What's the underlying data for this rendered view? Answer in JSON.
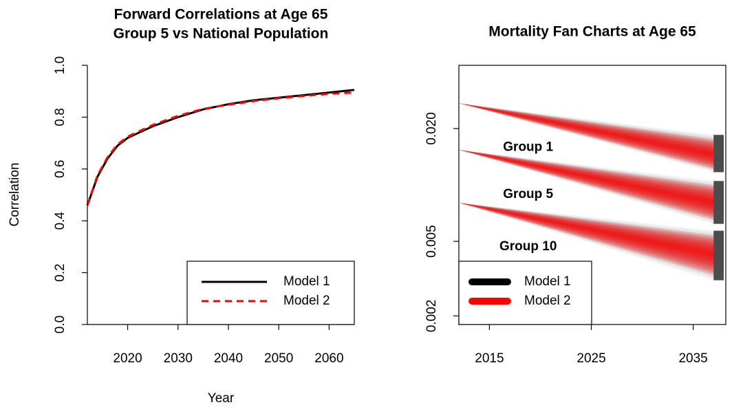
{
  "chart_data": [
    {
      "type": "line",
      "title": [
        "Forward Correlations at Age 65",
        "Group 5 vs National Population"
      ],
      "xlabel": "Year",
      "ylabel": "Correlation",
      "x": [
        2012,
        2014,
        2016,
        2018,
        2020,
        2025,
        2030,
        2035,
        2040,
        2045,
        2050,
        2055,
        2060,
        2065
      ],
      "series": [
        {
          "name": "Model 1",
          "color": "#000000",
          "dash": false,
          "values": [
            0.46,
            0.57,
            0.64,
            0.69,
            0.72,
            0.765,
            0.8,
            0.83,
            0.85,
            0.865,
            0.875,
            0.885,
            0.895,
            0.905
          ]
        },
        {
          "name": "Model 2",
          "color": "#ff0000",
          "dash": true,
          "values": [
            0.46,
            0.575,
            0.645,
            0.695,
            0.725,
            0.77,
            0.805,
            0.832,
            0.848,
            0.862,
            0.873,
            0.882,
            0.89,
            0.895
          ]
        }
      ],
      "xlim": [
        2012,
        2065
      ],
      "xticks": [
        2020,
        2030,
        2040,
        2050,
        2060
      ],
      "ylim": [
        0,
        1
      ],
      "yticks": [
        {
          "value": 0,
          "label": "0.0"
        },
        0.2,
        0.4,
        0.6,
        0.8,
        {
          "value": 1,
          "label": "1.0"
        }
      ],
      "legend": "bottom-right"
    },
    {
      "type": "fan",
      "title": "Mortality Fan Charts at Age 65",
      "log_y": true,
      "x": [
        2012,
        2037
      ],
      "series": [
        {
          "name": "Model 1",
          "color": "#000000"
        },
        {
          "name": "Model 2",
          "color": "#ff0000"
        }
      ],
      "groups": [
        {
          "name": "Group 1",
          "median": [
            0.0273,
            0.0145
          ],
          "bands": [
            {
              "lower": [
                0.0273,
                0.0117
              ],
              "upper": [
                0.0273,
                0.0185
              ]
            },
            {
              "lower": [
                0.0273,
                0.0121
              ],
              "upper": [
                0.0273,
                0.0176
              ]
            }
          ]
        },
        {
          "name": "Group 5",
          "median": [
            0.0154,
            0.00804
          ],
          "bands": [
            {
              "lower": [
                0.0154,
                0.0062
              ],
              "upper": [
                0.0154,
                0.0105
              ]
            },
            {
              "lower": [
                0.0154,
                0.0065
              ],
              "upper": [
                0.0154,
                0.01
              ]
            }
          ]
        },
        {
          "name": "Group 10",
          "median": [
            0.00804,
            0.00428
          ],
          "bands": [
            {
              "lower": [
                0.00804,
                0.0031
              ],
              "upper": [
                0.00804,
                0.0057
              ]
            },
            {
              "lower": [
                0.00804,
                0.0033
              ],
              "upper": [
                0.00804,
                0.0054
              ]
            }
          ]
        }
      ],
      "xlim": [
        2012,
        2038.2
      ],
      "xticks": [
        2015,
        2025,
        2035
      ],
      "ylim": [
        0.0018,
        0.0435
      ],
      "yticks": [
        0.002,
        0.005,
        {
          "value": 0.02,
          "label": "0.020"
        }
      ],
      "legend": "bottom-left"
    }
  ]
}
